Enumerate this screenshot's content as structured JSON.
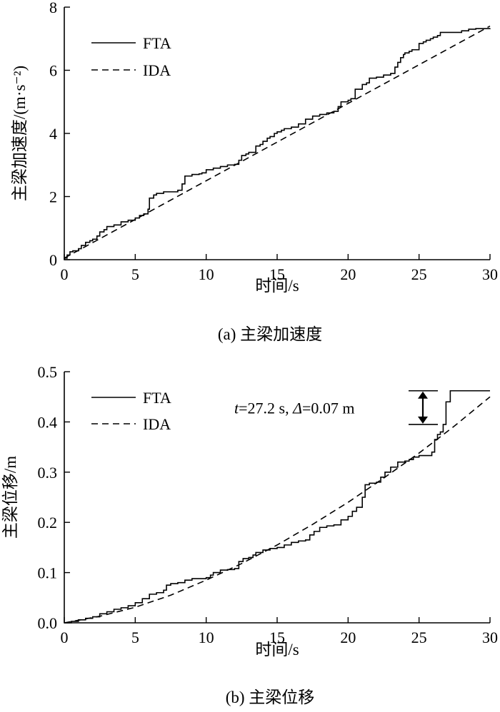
{
  "chart_data": [
    {
      "type": "line",
      "caption": "(a) 主梁加速度",
      "xlabel": "时间/s",
      "ylabel": "主梁加速度/(m·s⁻²)",
      "xlim": [
        0,
        30
      ],
      "ylim": [
        0,
        8
      ],
      "xticks": [
        0,
        5,
        10,
        15,
        20,
        25,
        30
      ],
      "yticks": [
        0,
        2,
        4,
        6,
        8
      ],
      "xtick_labels": [
        "0",
        "5",
        "10",
        "15",
        "20",
        "25",
        "30"
      ],
      "ytick_labels": [
        "0",
        "2",
        "4",
        "6",
        "8"
      ],
      "legend_position": "top-left",
      "series": [
        {
          "name": "FTA",
          "style": "solid",
          "x": [
            0,
            0.2,
            0.4,
            0.6,
            1.0,
            1.2,
            1.5,
            1.8,
            2.0,
            2.3,
            2.5,
            2.8,
            3.0,
            3.5,
            4.0,
            4.5,
            5.0,
            5.3,
            5.6,
            5.9,
            6.0,
            6.3,
            6.5,
            7.0,
            7.5,
            8.0,
            8.3,
            8.5,
            9.0,
            9.5,
            9.7,
            10.0,
            10.5,
            11.0,
            11.5,
            12.0,
            12.3,
            12.5,
            12.8,
            13.0,
            13.5,
            13.8,
            14.0,
            14.3,
            14.5,
            14.8,
            15.0,
            15.3,
            15.5,
            16.0,
            16.5,
            17.0,
            17.5,
            18.0,
            18.5,
            19.0,
            19.3,
            19.5,
            20.0,
            20.2,
            20.5,
            21.0,
            21.3,
            21.5,
            22.0,
            22.5,
            23.0,
            23.3,
            23.5,
            23.7,
            23.9,
            24.0,
            24.3,
            24.5,
            25.0,
            25.3,
            25.5,
            25.8,
            26.0,
            26.3,
            26.5,
            27.0,
            27.5,
            28.0,
            28.5,
            29.0,
            29.5,
            30.0
          ],
          "y": [
            0.05,
            0.15,
            0.25,
            0.28,
            0.35,
            0.45,
            0.55,
            0.6,
            0.65,
            0.75,
            0.88,
            0.95,
            1.05,
            1.1,
            1.2,
            1.25,
            1.32,
            1.4,
            1.45,
            1.6,
            1.95,
            2.05,
            2.1,
            2.15,
            2.15,
            2.2,
            2.4,
            2.65,
            2.7,
            2.72,
            2.75,
            2.85,
            2.9,
            2.95,
            3.0,
            3.02,
            3.15,
            3.3,
            3.35,
            3.4,
            3.6,
            3.65,
            3.75,
            3.85,
            3.9,
            4.0,
            4.05,
            4.1,
            4.15,
            4.2,
            4.3,
            4.45,
            4.55,
            4.6,
            4.65,
            4.7,
            4.85,
            5.0,
            5.05,
            5.1,
            5.4,
            5.55,
            5.6,
            5.75,
            5.78,
            5.85,
            5.9,
            6.1,
            6.25,
            6.4,
            6.5,
            6.55,
            6.6,
            6.65,
            6.85,
            6.9,
            6.95,
            7.0,
            7.05,
            7.1,
            7.2,
            7.2,
            7.2,
            7.25,
            7.3,
            7.32,
            7.32,
            7.33
          ]
        },
        {
          "name": "IDA",
          "style": "dashed",
          "x": [
            0,
            30
          ],
          "y": [
            0.05,
            7.4
          ]
        }
      ]
    },
    {
      "type": "line",
      "caption": "(b) 主梁位移",
      "xlabel": "时间/s",
      "ylabel": "主梁位移/m",
      "xlim": [
        0,
        30
      ],
      "ylim": [
        0,
        0.5
      ],
      "xticks": [
        0,
        5,
        10,
        15,
        20,
        25,
        30
      ],
      "yticks": [
        0,
        0.1,
        0.2,
        0.3,
        0.4,
        0.5
      ],
      "xtick_labels": [
        "0",
        "5",
        "10",
        "15",
        "20",
        "25",
        "30"
      ],
      "ytick_labels": [
        "0.0",
        "0.1",
        "0.2",
        "0.3",
        "0.4",
        "0.5"
      ],
      "legend_position": "top-left",
      "annotation": {
        "text_t": "t",
        "text_mid": "=27.2 s, ",
        "text_delta": "Δ",
        "text_end": "=0.07 m",
        "x": 27.2,
        "y_top": 0.462,
        "y_bottom": 0.395
      },
      "series": [
        {
          "name": "FTA",
          "style": "solid",
          "x": [
            0,
            0.5,
            1.0,
            1.5,
            2.0,
            2.5,
            3.0,
            3.5,
            4.0,
            4.5,
            5.0,
            5.5,
            6.0,
            6.5,
            7.0,
            7.2,
            7.5,
            8.0,
            8.5,
            9.0,
            9.5,
            10.0,
            10.3,
            10.5,
            11.0,
            11.5,
            12.0,
            12.3,
            12.6,
            13.0,
            13.3,
            13.5,
            14.0,
            14.5,
            15.0,
            15.5,
            16.0,
            16.5,
            17.0,
            17.3,
            17.6,
            18.0,
            18.5,
            19.0,
            19.5,
            20.0,
            20.3,
            20.6,
            21.0,
            21.2,
            21.5,
            22.0,
            22.3,
            22.6,
            23.0,
            23.5,
            24.0,
            24.3,
            24.6,
            25.0,
            25.3,
            25.6,
            25.9,
            26.1,
            26.3,
            26.5,
            26.7,
            26.9,
            27.2,
            27.5,
            28.0,
            29.0,
            30.0
          ],
          "y": [
            0.0,
            0.003,
            0.006,
            0.009,
            0.012,
            0.018,
            0.022,
            0.027,
            0.03,
            0.034,
            0.04,
            0.048,
            0.057,
            0.06,
            0.065,
            0.075,
            0.078,
            0.08,
            0.085,
            0.088,
            0.088,
            0.09,
            0.095,
            0.1,
            0.105,
            0.106,
            0.108,
            0.122,
            0.128,
            0.13,
            0.135,
            0.14,
            0.145,
            0.148,
            0.15,
            0.155,
            0.16,
            0.163,
            0.165,
            0.175,
            0.182,
            0.19,
            0.193,
            0.195,
            0.205,
            0.212,
            0.222,
            0.23,
            0.25,
            0.275,
            0.278,
            0.28,
            0.29,
            0.3,
            0.31,
            0.32,
            0.322,
            0.325,
            0.33,
            0.333,
            0.333,
            0.333,
            0.34,
            0.365,
            0.375,
            0.38,
            0.395,
            0.44,
            0.462,
            0.462,
            0.462,
            0.462,
            0.462
          ]
        },
        {
          "name": "IDA",
          "style": "dashed",
          "x": [
            0,
            2.5,
            5,
            7.5,
            10,
            12.5,
            15,
            17.5,
            20,
            22.5,
            25,
            27.5,
            30
          ],
          "y": [
            0.0,
            0.013,
            0.031,
            0.055,
            0.085,
            0.118,
            0.155,
            0.196,
            0.24,
            0.288,
            0.338,
            0.392,
            0.45
          ]
        }
      ]
    }
  ]
}
